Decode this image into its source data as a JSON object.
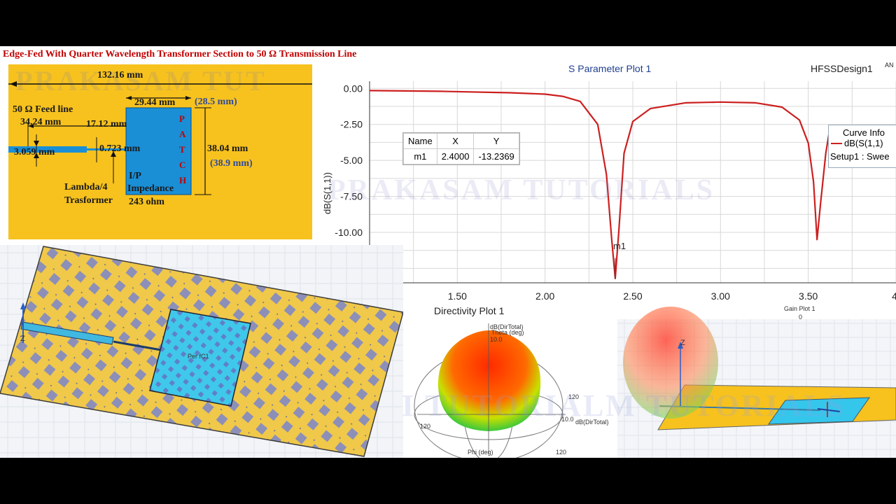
{
  "title": "Edge-Fed With Quarter Wavelength Transformer Section to 50 Ω Transmission Line",
  "watermark": "PRAKASAM TUTORIALS",
  "watermark2": "PRAKASAM TUT",
  "watermark3": "I TUTORIALM TUTORIALS",
  "schematic": {
    "total_width": "132.16 mm",
    "patch_width": "29.44 mm",
    "patch_width_alt": "(28.5 mm)",
    "feed_line_label": "50 Ω Feed line",
    "feed_length": "34.24 mm",
    "transformer_length": "17.12 mm",
    "feed_width": "3.059 mm",
    "transformer_width": "0.723 mm",
    "patch_height": "38.04 mm",
    "patch_height_alt": "(38.9 mm)",
    "patch_letters": [
      "P",
      "A",
      "T",
      "C",
      "H"
    ],
    "ip_label": "I/P",
    "impedance_label": "Impedance",
    "impedance_value": "243 ohm",
    "lambda_label": "Lambda/4",
    "transformer_label": "Trasformer"
  },
  "s_plot": {
    "title": "S Parameter Plot 1",
    "design": "HFSSDesign1",
    "design_suffix": "AN",
    "ylabel": "dB(S(1,1))",
    "marker_table": {
      "headers": [
        "Name",
        "X",
        "Y"
      ],
      "row": [
        "m1",
        "2.4000",
        "-13.2369"
      ]
    },
    "marker_label": "m1",
    "curve_info": {
      "title": "Curve Info",
      "curve": "dB(S(1,1)",
      "setup": "Setup1 : Swee"
    },
    "colors": {
      "curve": "#cc1f1f",
      "grid": "#d8d8d8"
    }
  },
  "chart_data": {
    "type": "line",
    "title": "S Parameter Plot 1",
    "xlabel": "",
    "ylabel": "dB(S(1,1))",
    "x_ticks": [
      "1.50",
      "2.00",
      "2.50",
      "3.00",
      "3.50",
      "4."
    ],
    "y_ticks": [
      "0.00",
      "-2.50",
      "-5.00",
      "-7.50",
      "-10.00"
    ],
    "xlim": [
      1.0,
      4.0
    ],
    "ylim": [
      -13.5,
      0.5
    ],
    "grid": true,
    "series": [
      {
        "name": "dB(S(1,1)",
        "x": [
          1.0,
          1.4,
          1.8,
          2.0,
          2.1,
          2.2,
          2.3,
          2.35,
          2.38,
          2.4,
          2.42,
          2.45,
          2.5,
          2.6,
          2.8,
          3.0,
          3.2,
          3.35,
          3.45,
          3.5,
          3.53,
          3.55,
          3.57,
          3.6,
          3.62
        ],
        "y": [
          -0.15,
          -0.2,
          -0.3,
          -0.4,
          -0.55,
          -0.9,
          -2.5,
          -6.0,
          -10.5,
          -13.2,
          -10.0,
          -4.5,
          -2.3,
          -1.4,
          -1.0,
          -0.95,
          -1.0,
          -1.3,
          -2.2,
          -3.8,
          -6.5,
          -10.5,
          -8.0,
          -4.5,
          -3.0
        ]
      }
    ]
  },
  "geometry3d": {
    "axis_label": "Z",
    "patch_label": "Per fC1"
  },
  "directivity": {
    "title": "Directivity Plot 1",
    "theta_label": "Theta (deg)",
    "db_label": "dB(DirTotal)",
    "phi_label": "Phi (deg)",
    "top_value": "10.0",
    "ring_values": [
      "120",
      "10.0",
      "120",
      "120"
    ]
  },
  "gain": {
    "title": "Gain Plot 1",
    "value": "0",
    "axis_label": "Z"
  }
}
